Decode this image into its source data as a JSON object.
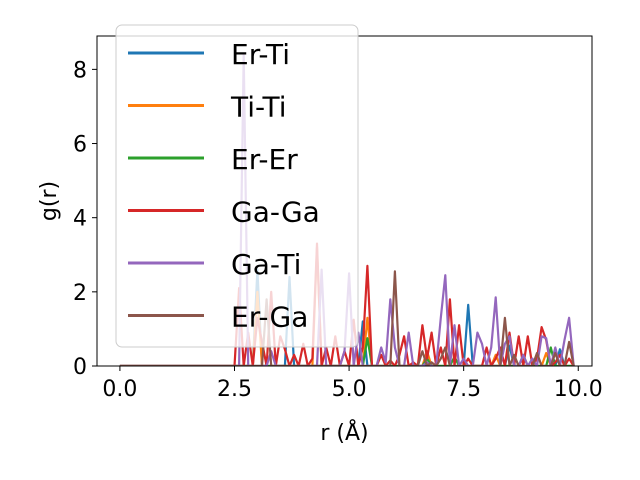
{
  "chart_data": {
    "type": "line",
    "title": "",
    "xlabel": "r (Å)",
    "ylabel": "g(r)",
    "xlim": [
      -0.5,
      10.3
    ],
    "ylim": [
      0,
      8.9
    ],
    "xticks": [
      {
        "value": 0.0,
        "label": "0.0"
      },
      {
        "value": 2.5,
        "label": "2.5"
      },
      {
        "value": 5.0,
        "label": "5.0"
      },
      {
        "value": 7.5,
        "label": "7.5"
      },
      {
        "value": 10.0,
        "label": "10.0"
      }
    ],
    "yticks": [
      {
        "value": 0,
        "label": "0"
      },
      {
        "value": 2,
        "label": "2"
      },
      {
        "value": 4,
        "label": "4"
      },
      {
        "value": 6,
        "label": "6"
      },
      {
        "value": 8,
        "label": "8"
      }
    ],
    "grid": false,
    "legend_position": "top-left",
    "series": [
      {
        "name": "Er-Ti",
        "color": "#1f77b4",
        "x": [
          0.0,
          2.9,
          3.0,
          3.1,
          3.6,
          3.7,
          3.8,
          5.2,
          5.3,
          5.4,
          7.5,
          7.6,
          7.7,
          8.4,
          8.5,
          8.6,
          9.5,
          9.6,
          9.7,
          9.9
        ],
        "y": [
          0,
          0,
          2.6,
          0,
          0,
          2.4,
          0,
          0,
          1.2,
          0,
          0,
          1.65,
          0,
          0,
          0.55,
          0,
          0,
          0.45,
          0,
          0
        ]
      },
      {
        "name": "Ti-Ti",
        "color": "#ff7f0e",
        "x": [
          0.0,
          2.9,
          3.0,
          3.1,
          4.2,
          4.3,
          4.4,
          5.3,
          5.4,
          5.5,
          6.6,
          6.7,
          6.8,
          8.1,
          8.2,
          8.3,
          9.2,
          9.3,
          9.4,
          9.9
        ],
        "y": [
          0,
          0,
          2.0,
          0,
          0,
          3.2,
          0,
          0,
          1.3,
          0,
          0,
          0.4,
          0,
          0,
          0.3,
          0,
          0,
          0.35,
          0,
          0
        ]
      },
      {
        "name": "Er-Er",
        "color": "#2ca02c",
        "x": [
          0.0,
          5.3,
          5.4,
          5.5,
          6.6,
          6.7,
          6.8,
          7.2,
          7.3,
          7.4,
          8.7,
          8.8,
          8.9,
          9.3,
          9.4,
          9.5,
          9.9
        ],
        "y": [
          0,
          0,
          0.75,
          0,
          0,
          0.2,
          0,
          0,
          0.25,
          0,
          0,
          0.3,
          0,
          0,
          0.5,
          0,
          0
        ]
      },
      {
        "name": "Ga-Ga",
        "color": "#d62728",
        "x": [
          0.0,
          2.5,
          2.6,
          2.7,
          2.8,
          2.9,
          3.0,
          3.2,
          3.3,
          3.4,
          3.5,
          3.6,
          3.7,
          3.8,
          3.9,
          4.0,
          4.1,
          4.2,
          4.3,
          4.4,
          4.5,
          4.6,
          4.7,
          4.8,
          4.9,
          5.0,
          5.1,
          5.2,
          5.3,
          5.4,
          5.5,
          5.6,
          5.7,
          5.8,
          5.9,
          6.0,
          6.1,
          6.2,
          6.3,
          6.4,
          6.5,
          6.6,
          6.7,
          6.8,
          6.9,
          7.0,
          7.1,
          7.2,
          7.3,
          7.4,
          7.5,
          7.6,
          7.7,
          7.8,
          7.9,
          8.0,
          8.1,
          8.2,
          8.3,
          8.4,
          8.5,
          8.6,
          8.7,
          8.8,
          8.9,
          9.0,
          9.1,
          9.2,
          9.3,
          9.4,
          9.5,
          9.6,
          9.7,
          9.8,
          9.9
        ],
        "y": [
          0,
          0,
          2.1,
          0,
          0.9,
          0,
          1.3,
          0,
          2.0,
          0,
          0.8,
          0.45,
          0,
          0.3,
          0,
          0.6,
          0,
          0.2,
          3.3,
          0,
          0.5,
          0,
          0.8,
          0,
          0.4,
          0,
          1.25,
          0,
          0.5,
          2.7,
          0,
          0,
          0.3,
          0,
          0.15,
          0,
          0.3,
          0.8,
          0,
          0.1,
          0,
          1.1,
          0.2,
          0.9,
          0,
          0.5,
          0,
          1.8,
          0,
          1.1,
          0,
          0.2,
          0,
          0,
          0,
          0.5,
          0,
          0.2,
          0.5,
          0,
          0.9,
          0,
          0.8,
          0,
          0.8,
          0,
          0.2,
          1.05,
          0.7,
          0,
          0.1,
          0.3,
          0,
          0.2,
          0
        ]
      },
      {
        "name": "Ga-Ti",
        "color": "#9467bd",
        "x": [
          0.0,
          2.5,
          2.6,
          2.7,
          2.8,
          2.9,
          3.2,
          3.3,
          3.4,
          4.3,
          4.4,
          4.5,
          4.8,
          4.9,
          5.0,
          5.1,
          5.2,
          5.3,
          5.6,
          5.7,
          5.8,
          5.9,
          6.0,
          6.1,
          6.2,
          6.3,
          6.4,
          6.5,
          6.6,
          6.7,
          6.8,
          6.9,
          7.0,
          7.1,
          7.2,
          7.3,
          7.4,
          7.5,
          7.6,
          7.7,
          7.8,
          7.9,
          8.0,
          8.1,
          8.2,
          8.3,
          8.4,
          8.5,
          8.6,
          8.7,
          8.8,
          8.9,
          9.0,
          9.1,
          9.2,
          9.3,
          9.4,
          9.5,
          9.6,
          9.7,
          9.8,
          9.9
        ],
        "y": [
          0,
          0,
          0,
          8.4,
          0,
          0,
          0,
          0.4,
          0,
          0,
          2.6,
          0,
          0,
          0.4,
          2.5,
          0,
          0.9,
          0,
          0,
          0.5,
          0.1,
          1.8,
          0.5,
          0,
          0,
          0.9,
          0,
          0,
          0,
          0.1,
          0,
          0,
          1.3,
          2.45,
          0,
          1.1,
          0,
          0.2,
          0,
          0,
          0.9,
          0.6,
          0,
          0.5,
          1.85,
          0,
          0.6,
          0.8,
          0,
          0,
          0.3,
          0,
          0.2,
          0,
          0.8,
          0.75,
          0,
          0.5,
          0,
          0.7,
          1.3,
          0
        ]
      },
      {
        "name": "Er-Ga",
        "color": "#8c564b",
        "x": [
          0.0,
          3.1,
          3.2,
          3.3,
          5.9,
          6.0,
          6.1,
          6.5,
          6.6,
          6.7,
          6.8,
          6.9,
          7.0,
          7.1,
          7.2,
          8.3,
          8.4,
          8.5,
          8.6,
          8.7,
          8.8,
          9.0,
          9.1,
          9.2,
          9.4,
          9.5,
          9.6,
          9.7,
          9.8,
          9.9
        ],
        "y": [
          0,
          0,
          1.8,
          0,
          0,
          2.55,
          0,
          0,
          0.4,
          0,
          0.1,
          0,
          0.2,
          0.5,
          0,
          0,
          1.3,
          0,
          0.3,
          0,
          0,
          0,
          0.35,
          0,
          0,
          0.35,
          0,
          0,
          0.65,
          0
        ]
      }
    ]
  }
}
